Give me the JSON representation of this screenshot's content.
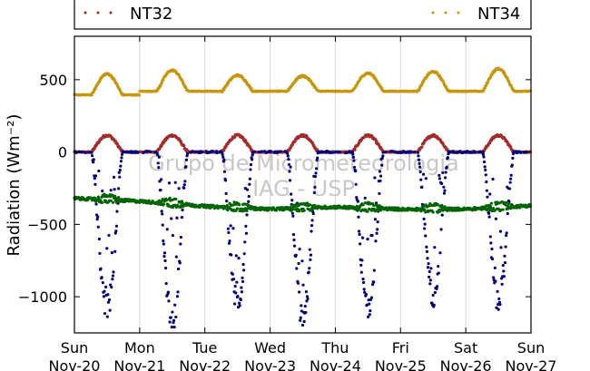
{
  "chart_data": {
    "type": "scatter",
    "ylabel": "Radiation (Wm⁻²)",
    "ylim": [
      -1250,
      800
    ],
    "xlim": [
      0,
      7
    ],
    "yticks": [
      500,
      0,
      -500,
      -1000
    ],
    "ytick_labels": [
      "500",
      "0",
      "−500",
      "−1000"
    ],
    "xtick_labels": [
      {
        "day": "Sun",
        "date": "Nov-20"
      },
      {
        "day": "Mon",
        "date": "Nov-21"
      },
      {
        "day": "Tue",
        "date": "Nov-22"
      },
      {
        "day": "Wed",
        "date": "Nov-23"
      },
      {
        "day": "Thu",
        "date": "Nov-24"
      },
      {
        "day": "Fri",
        "date": "Nov-25"
      },
      {
        "day": "Sat",
        "date": "Nov-26"
      },
      {
        "day": "Sun",
        "date": "Nov-27"
      }
    ],
    "grid": "vertical",
    "legend_placement": "top",
    "watermark": [
      "Grupo de Micrometeorologia",
      "IAG - USP"
    ],
    "series": [
      {
        "name": "NT32",
        "color": "#a52a2a",
        "shape": "daily-bump",
        "baseline": 0,
        "peak": 115,
        "noise": 8,
        "shown_in_legend": true
      },
      {
        "name": "NT34",
        "color": "#c8960c",
        "shape": "daily-bump",
        "baseline_by_day": [
          395,
          420,
          420,
          420,
          420,
          420,
          420
        ],
        "peaks_by_day": [
          540,
          565,
          530,
          525,
          545,
          555,
          575
        ],
        "noise": 6,
        "shown_in_legend": true
      },
      {
        "name": "",
        "color": "#00007f",
        "shape": "daily-trough",
        "baseline": 0,
        "troughs_by_day": [
          -1080,
          -1180,
          -1050,
          -1150,
          -1080,
          -980,
          -1020
        ],
        "noise": 90,
        "shown_in_legend": false
      },
      {
        "name": "",
        "color": "#006400",
        "shape": "step-noise",
        "levels_by_day": [
          -320,
          -340,
          -375,
          -395,
          -380,
          -395,
          -395
        ],
        "end_level": -370,
        "noise": 10,
        "shown_in_legend": false
      }
    ]
  }
}
